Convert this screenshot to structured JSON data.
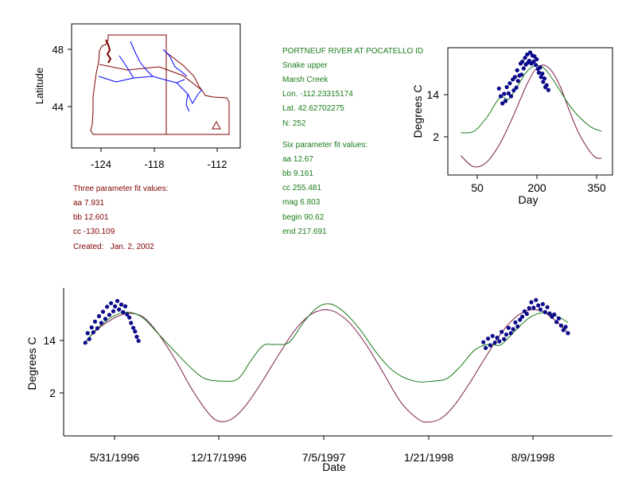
{
  "colors": {
    "fit_three": "#7a1a4a",
    "fit_six": "#1a7a1a",
    "observed": "#0a0a8a",
    "border": "#800000",
    "river": "#0000ff",
    "info_text": "#1b7d1b",
    "three_text": "#800000"
  },
  "station": {
    "name": "PORTNEUF RIVER AT POCATELLO ID",
    "basin": "Snake upper",
    "creek": "Marsh Creek",
    "lon": "Lon. -112.23315174",
    "lat": "Lat. 42.62702275",
    "n": "N: 252"
  },
  "six_fit": {
    "heading": "Six parameter fit values:",
    "aa": "aa 12.67",
    "bb": "bb 9.161",
    "cc": "cc 255.481",
    "mag": "mag 6.803",
    "begin": "begin 90.62",
    "end": "end 217.691"
  },
  "three_fit": {
    "heading": "Three parameter fit values:",
    "aa": "aa 7.931",
    "bb": "bb 12.601",
    "cc": "cc -130.109",
    "created": "Created:   Jan. 2, 2002"
  },
  "chart_data": [
    {
      "id": "location_map",
      "type": "map",
      "ylabel": "Latitude",
      "x_ticks": [
        "-124",
        "-118",
        "-112"
      ],
      "y_ticks": [
        "48",
        "44"
      ],
      "xlim": [
        -127,
        -109.5
      ],
      "ylim": [
        41,
        50
      ],
      "marker": {
        "symbol": "triangle",
        "lon": -112.2,
        "lat": 42.6
      }
    },
    {
      "id": "day_of_year",
      "type": "line",
      "xlabel": "Day",
      "ylabel": "Degrees C",
      "x_ticks": [
        "50",
        "200",
        "350"
      ],
      "y_ticks": [
        "14",
        "2"
      ],
      "xlim": [
        0,
        380
      ],
      "ylim": [
        -4.5,
        22
      ],
      "series": [
        {
          "role": "fit_six",
          "x": [
            30,
            60,
            90,
            120,
            140,
            160,
            180,
            200,
            220,
            240,
            260,
            280,
            300,
            330,
            355
          ],
          "y": [
            4.3,
            4.6,
            7.5,
            11.6,
            11.3,
            13.9,
            16.8,
            18.2,
            17.9,
            15.7,
            12.9,
            10.1,
            7.9,
            5.5,
            4.6
          ]
        },
        {
          "role": "fit_three",
          "x": [
            30,
            60,
            90,
            120,
            150,
            180,
            200,
            220,
            240,
            260,
            280,
            300,
            320,
            340,
            355
          ],
          "y": [
            -0.5,
            -2.8,
            -1.8,
            2.0,
            7.6,
            13.9,
            17.2,
            18.4,
            17.1,
            13.8,
            9.0,
            4.6,
            1.4,
            -0.8,
            -1.0
          ]
        },
        {
          "role": "observed",
          "x": [
            118,
            122,
            126,
            130,
            133,
            136,
            140,
            143,
            146,
            150,
            152,
            155,
            158,
            160,
            162,
            165,
            168,
            170,
            172,
            175,
            178,
            180,
            183,
            185,
            188,
            190,
            193,
            195,
            198,
            200,
            203,
            205,
            208,
            210,
            213,
            215,
            218,
            220,
            223,
            225,
            228,
            232
          ],
          "y": [
            13.5,
            11.9,
            10.4,
            12.4,
            10.9,
            13.8,
            12.5,
            14.6,
            11.9,
            15.4,
            13.1,
            15.9,
            13.7,
            17.3,
            15.1,
            16.2,
            18.7,
            16.4,
            19.1,
            17.7,
            19.9,
            18.5,
            20.6,
            18.9,
            19.3,
            21.0,
            18.7,
            20.4,
            19.1,
            20.2,
            18.4,
            19.6,
            17.6,
            16.8,
            17.9,
            15.9,
            16.6,
            14.9,
            15.6,
            13.8,
            14.2,
            13.2
          ]
        }
      ]
    },
    {
      "id": "time_series",
      "type": "line",
      "xlabel": "Date",
      "ylabel": "Degrees C",
      "x_ticks": [
        "5/31/1996",
        "12/17/1996",
        "7/5/1997",
        "1/21/1998",
        "8/9/1998"
      ],
      "y_ticks": [
        "14",
        "2"
      ],
      "xlim": [
        "1996-04-20",
        "1998-12-07"
      ],
      "ylim": [
        -9,
        24
      ],
      "series": [
        {
          "role": "fit_six",
          "x": [
            "1996-05-25",
            "1996-06-15",
            "1996-07-15",
            "1996-08-10",
            "1996-09-05",
            "1996-10-01",
            "1996-11-01",
            "1996-12-01",
            "1996-12-25",
            "1997-01-25",
            "1997-02-20",
            "1997-03-15",
            "1997-04-05",
            "1997-04-25",
            "1997-05-20",
            "1997-06-15",
            "1997-07-10",
            "1997-08-01",
            "1997-08-25",
            "1997-09-20",
            "1997-10-20",
            "1997-11-20",
            "1997-12-25",
            "1998-01-25",
            "1998-02-20",
            "1998-03-15",
            "1998-04-10",
            "1998-05-05",
            "1998-05-25",
            "1998-06-20",
            "1998-07-15",
            "1998-08-10",
            "1998-09-05",
            "1998-09-20"
          ],
          "y": [
            11.4,
            14.6,
            17.6,
            18.6,
            17.4,
            14.0,
            9.8,
            5.9,
            3.7,
            3.2,
            3.8,
            8.0,
            11.2,
            11.4,
            11.9,
            16.5,
            19.8,
            20.4,
            18.5,
            14.9,
            9.5,
            5.3,
            3.2,
            3.2,
            3.8,
            6.4,
            10.2,
            11.5,
            11.3,
            14.5,
            17.4,
            18.5,
            17.4,
            16.3
          ]
        },
        {
          "role": "fit_three",
          "x": [
            "1996-05-25",
            "1996-06-15",
            "1996-07-15",
            "1996-08-10",
            "1996-09-05",
            "1996-10-01",
            "1996-11-01",
            "1996-12-01",
            "1997-01-01",
            "1997-01-20",
            "1997-02-10",
            "1997-03-05",
            "1997-04-01",
            "1997-05-01",
            "1997-06-01",
            "1997-07-01",
            "1997-08-01",
            "1997-09-01",
            "1997-10-01",
            "1997-11-01",
            "1997-12-01",
            "1998-01-01",
            "1998-01-20",
            "1998-02-10",
            "1998-03-05",
            "1998-04-01",
            "1998-05-01",
            "1998-06-01",
            "1998-07-01",
            "1998-08-01",
            "1998-09-01",
            "1998-09-20"
          ],
          "y": [
            11.5,
            14.4,
            17.1,
            18.3,
            17.6,
            14.1,
            8.1,
            1.3,
            -4.3,
            -5.8,
            -5.1,
            -2.2,
            2.8,
            9.0,
            14.9,
            18.4,
            19.0,
            16.4,
            11.5,
            5.0,
            -1.4,
            -5.3,
            -5.9,
            -5.1,
            -2.2,
            2.8,
            9.0,
            14.9,
            18.4,
            19.0,
            16.4,
            14.0
          ]
        },
        {
          "role": "observed",
          "x": [
            "1996-05-28",
            "1996-06-01",
            "1996-06-04",
            "1996-06-08",
            "1996-06-11",
            "1996-06-14",
            "1996-06-18",
            "1996-06-21",
            "1996-06-25",
            "1996-06-28",
            "1996-07-02",
            "1996-07-05",
            "1996-07-09",
            "1996-07-12",
            "1996-07-16",
            "1996-07-19",
            "1996-07-23",
            "1996-07-26",
            "1996-07-30",
            "1996-08-02",
            "1996-08-06",
            "1996-08-09",
            "1996-08-13",
            "1996-08-16",
            "1996-08-20",
            "1996-08-23",
            "1996-08-26",
            "1996-08-29",
            "1998-04-25",
            "1998-04-29",
            "1998-05-03",
            "1998-05-07",
            "1998-05-11",
            "1998-05-15",
            "1998-05-19",
            "1998-05-23",
            "1998-05-27",
            "1998-05-31",
            "1998-06-04",
            "1998-06-08",
            "1998-06-12",
            "1998-06-16",
            "1998-06-20",
            "1998-06-24",
            "1998-06-28",
            "1998-07-02",
            "1998-07-06",
            "1998-07-10",
            "1998-07-14",
            "1998-07-18",
            "1998-07-22",
            "1998-07-26",
            "1998-07-30",
            "1998-08-03",
            "1998-08-07",
            "1998-08-11",
            "1998-08-15",
            "1998-08-19",
            "1998-08-23",
            "1998-08-27",
            "1998-08-31",
            "1998-09-04",
            "1998-09-08",
            "1998-09-12",
            "1998-09-16",
            "1998-09-20"
          ],
          "y": [
            11.8,
            13.9,
            12.6,
            15.2,
            14.1,
            16.5,
            15.0,
            17.7,
            16.2,
            18.7,
            17.1,
            19.8,
            18.0,
            20.6,
            18.8,
            19.9,
            21.1,
            19.2,
            20.3,
            18.6,
            19.9,
            18.1,
            17.4,
            16.2,
            15.1,
            14.3,
            13.1,
            12.2,
            11.9,
            10.6,
            12.7,
            11.2,
            13.3,
            11.8,
            12.9,
            12.1,
            14.2,
            12.6,
            13.6,
            15.1,
            13.9,
            14.8,
            16.3,
            15.4,
            16.9,
            17.6,
            18.8,
            18.2,
            19.5,
            20.8,
            19.6,
            21.3,
            20.1,
            19.2,
            20.4,
            18.6,
            19.7,
            18.3,
            17.6,
            18.1,
            16.4,
            17.2,
            15.6,
            14.6,
            15.3,
            13.9
          ]
        }
      ]
    }
  ]
}
